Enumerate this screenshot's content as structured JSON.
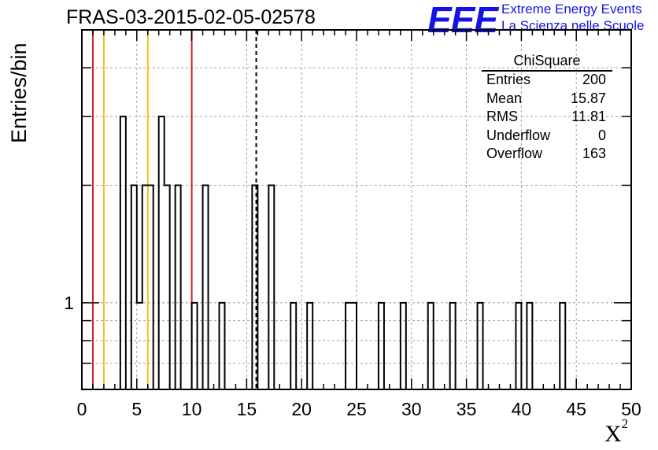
{
  "header": {
    "title": "FRAS-03-2015-02-05-02578",
    "logo_text": "EEE",
    "tagline_1": "Extreme Energy Events",
    "tagline_2": "La Scienza nelle Scuole"
  },
  "stats_box": {
    "name": "ChiSquare",
    "rows": [
      {
        "label": "Entries",
        "value": "200"
      },
      {
        "label": "Mean",
        "value": "15.87"
      },
      {
        "label": "RMS",
        "value": "11.81"
      },
      {
        "label": "Underflow",
        "value": "0"
      },
      {
        "label": "Overflow",
        "value": "163"
      }
    ]
  },
  "colors": {
    "logo": "#1414e6",
    "red_line": "#d42020",
    "yellow_line": "#f0c020",
    "histogram": "#000000"
  },
  "chart_data": {
    "type": "histogram",
    "xlabel": "X²",
    "ylabel": "Entries/bin",
    "xlim": [
      0,
      50
    ],
    "y_scale": "log",
    "ylim": [
      0.6,
      5
    ],
    "x_ticks": [
      0,
      5,
      10,
      15,
      20,
      25,
      30,
      35,
      40,
      45,
      50
    ],
    "y_tick_labels": [
      "1"
    ],
    "grid": true,
    "bin_width": 0.5,
    "bins": [
      {
        "x": 3.5,
        "count": 3
      },
      {
        "x": 4.5,
        "count": 2
      },
      {
        "x": 5.0,
        "count": 1
      },
      {
        "x": 5.5,
        "count": 2
      },
      {
        "x": 6.0,
        "count": 2
      },
      {
        "x": 7.0,
        "count": 3
      },
      {
        "x": 7.5,
        "count": 2
      },
      {
        "x": 8.5,
        "count": 2
      },
      {
        "x": 10.0,
        "count": 1
      },
      {
        "x": 11.0,
        "count": 2
      },
      {
        "x": 12.5,
        "count": 1
      },
      {
        "x": 15.5,
        "count": 2
      },
      {
        "x": 17.0,
        "count": 2
      },
      {
        "x": 19.0,
        "count": 1
      },
      {
        "x": 20.5,
        "count": 1
      },
      {
        "x": 24.0,
        "count": 1
      },
      {
        "x": 24.5,
        "count": 1
      },
      {
        "x": 27.0,
        "count": 1
      },
      {
        "x": 29.0,
        "count": 1
      },
      {
        "x": 31.5,
        "count": 1
      },
      {
        "x": 33.5,
        "count": 1
      },
      {
        "x": 36.0,
        "count": 1
      },
      {
        "x": 39.5,
        "count": 1
      },
      {
        "x": 40.5,
        "count": 1
      },
      {
        "x": 43.5,
        "count": 1
      }
    ],
    "reference_lines": [
      {
        "x": 1,
        "color": "red",
        "style": "solid"
      },
      {
        "x": 2,
        "color": "yellow",
        "style": "solid"
      },
      {
        "x": 6,
        "color": "yellow",
        "style": "solid"
      },
      {
        "x": 10,
        "color": "red",
        "style": "solid"
      },
      {
        "x": 15.87,
        "color": "black",
        "style": "dashed"
      }
    ]
  }
}
